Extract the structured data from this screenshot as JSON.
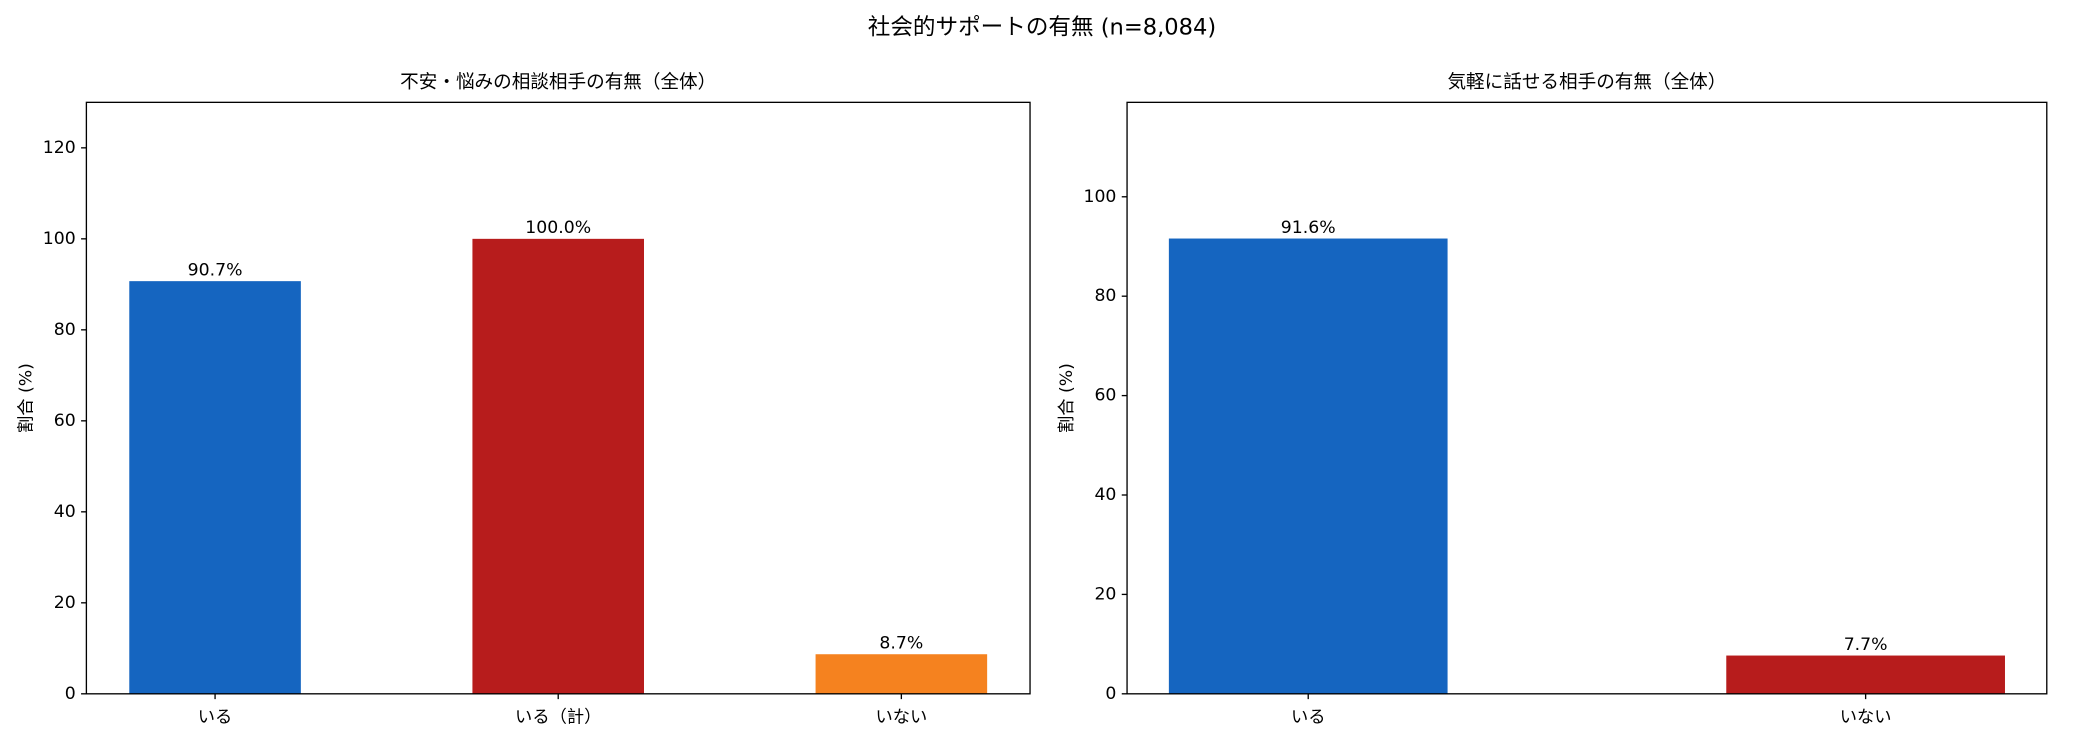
{
  "title": "社会的サポートの有無 (n=8,084)",
  "chart_data": [
    {
      "type": "bar",
      "title": "不安・悩みの相談相手の有無（全体）",
      "y_label": "割合 (%)",
      "categories": [
        "いる",
        "いる（計）",
        "いない"
      ],
      "values": [
        90.7,
        100.0,
        8.7
      ],
      "value_labels": [
        "90.7%",
        "100.0%",
        "8.7%"
      ],
      "colors": [
        "#1565c0",
        "#b71c1c",
        "#f5821f"
      ],
      "ylim": [
        0,
        130
      ],
      "yticks": [
        0,
        20,
        40,
        60,
        80,
        100,
        120
      ]
    },
    {
      "type": "bar",
      "title": "気軽に話せる相手の有無（全体）",
      "y_label": "割合 (%)",
      "categories": [
        "いる",
        "いない"
      ],
      "values": [
        91.6,
        7.7
      ],
      "value_labels": [
        "91.6%",
        "7.7%"
      ],
      "colors": [
        "#1565c0",
        "#b71c1c"
      ],
      "ylim": [
        0,
        119
      ],
      "yticks": [
        0,
        20,
        40,
        60,
        80,
        100
      ]
    }
  ]
}
